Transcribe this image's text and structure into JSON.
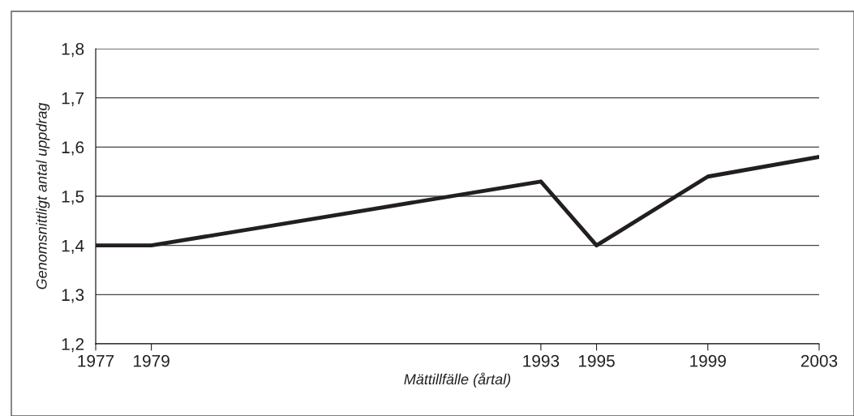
{
  "chart_data": {
    "type": "line",
    "xlabel": "Mättillfälle (årtal)",
    "ylabel": "Genomsnittligt antal uppdrag",
    "x": [
      1977,
      1979,
      1993,
      1995,
      1999,
      2003
    ],
    "series": [
      {
        "color": "#231f20",
        "values": [
          1.4,
          1.4,
          1.53,
          1.4,
          1.54,
          1.58
        ]
      }
    ],
    "xlim": [
      1977,
      2003
    ],
    "xticks": [
      1977,
      1979,
      1993,
      1995,
      1999,
      2003
    ],
    "ylim": [
      1.2,
      1.8
    ],
    "yticks": [
      {
        "value": 1.2,
        "label": "1,2"
      },
      {
        "value": 1.3,
        "label": "1,3"
      },
      {
        "value": 1.4,
        "label": "1,4"
      },
      {
        "value": 1.5,
        "label": "1,5"
      },
      {
        "value": 1.6,
        "label": "1,6"
      },
      {
        "value": 1.7,
        "label": "1,7"
      },
      {
        "value": 1.8,
        "label": "1,8"
      }
    ],
    "grid": "y",
    "marker": "none",
    "line_style": "solid"
  }
}
